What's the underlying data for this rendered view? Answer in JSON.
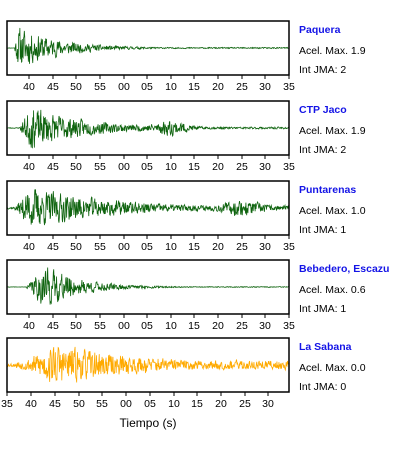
{
  "figure": {
    "xlabel": "Tiempo (s)"
  },
  "chart_data": {
    "type": "line",
    "description_axis": "seconds (clock seconds, wrapping at 60)",
    "xlabel": "Tiempo (s)",
    "x_range_seconds": [
      0,
      60
    ],
    "tick_labels": [
      "40",
      "45",
      "50",
      "55",
      "00",
      "05",
      "10",
      "15",
      "20",
      "25",
      "30",
      "35"
    ],
    "bottom_tick_labels": [
      "35",
      "40",
      "45",
      "50",
      "55",
      "00",
      "05",
      "10",
      "15",
      "20",
      "25",
      "30"
    ],
    "panels": [
      {
        "station": "Paquera",
        "acel_label": "Acel. Max. 1.9",
        "int_label": "Int JMA: 2",
        "color": "#0f640f",
        "onset_s": 1.5,
        "peak_s": 2.5,
        "decay_s": 9,
        "noise": 0.03,
        "burst_s": null,
        "seed": 11
      },
      {
        "station": "CTP Jaco",
        "acel_label": "Acel. Max. 1.9",
        "int_label": "Int JMA: 2",
        "color": "#0f640f",
        "onset_s": 2.5,
        "peak_s": 5,
        "decay_s": 12,
        "noise": 0.05,
        "burst_s": 35,
        "seed": 23
      },
      {
        "station": "Puntarenas",
        "acel_label": "Acel. Max. 1.0",
        "int_label": "Int JMA: 1",
        "color": "#0f640f",
        "onset_s": 1.5,
        "peak_s": 5,
        "decay_s": 18,
        "noise": 0.12,
        "burst_s": 50,
        "seed": 37
      },
      {
        "station": "Bebedero, Escazu",
        "acel_label": "Acel. Max. 0.6",
        "int_label": "Int JMA: 1",
        "color": "#0f640f",
        "onset_s": 4,
        "peak_s": 8,
        "decay_s": 8,
        "noise": 0.02,
        "burst_s": null,
        "seed": 41
      },
      {
        "station": "La Sabana",
        "acel_label": "Acel. Max. 0.0",
        "int_label": "Int JMA: 0",
        "color": "#ffaa00",
        "onset_s": 2,
        "peak_s": 10,
        "decay_s": 20,
        "noise": 0.22,
        "burst_s": null,
        "seed": 53
      }
    ]
  }
}
